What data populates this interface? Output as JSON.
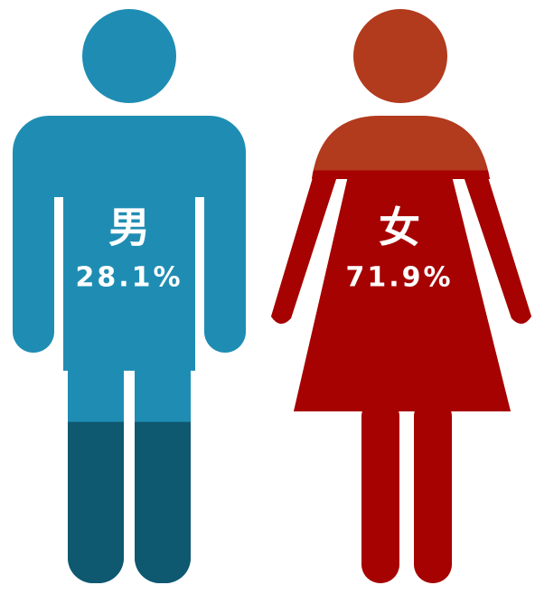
{
  "chart_data": {
    "type": "pictograph",
    "categories": [
      "男",
      "女"
    ],
    "values": [
      28.1,
      71.9
    ],
    "value_labels": [
      "28.1%",
      "71.9%"
    ],
    "colors": [
      "#0e5870",
      "#a60202"
    ],
    "base_colors": [
      "#1f8db3",
      "#b23a1d"
    ]
  }
}
